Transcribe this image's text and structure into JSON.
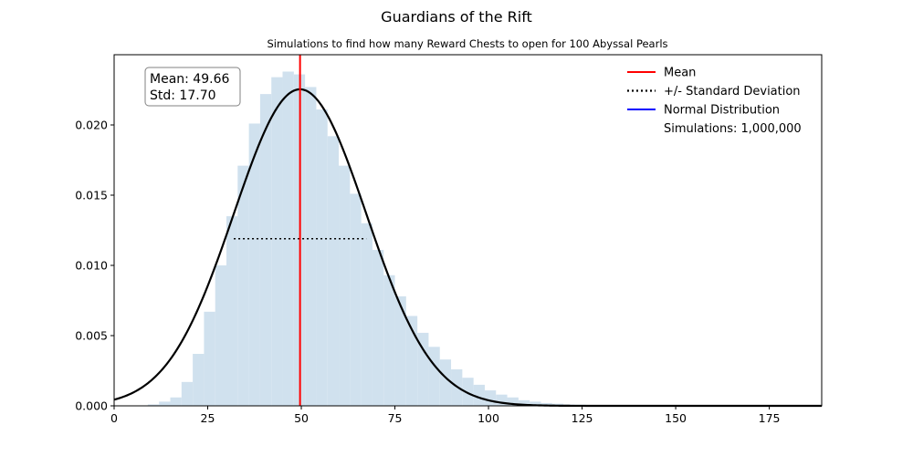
{
  "chart_data": {
    "type": "bar",
    "title": "Guardians of the Rift",
    "subtitle": "Simulations to find how many Reward Chests to open for 100 Abyssal Pearls",
    "xlim": [
      0,
      189
    ],
    "ylim": [
      0,
      0.025
    ],
    "x_ticks": [
      0,
      25,
      50,
      75,
      100,
      125,
      150,
      175
    ],
    "y_ticks": [
      0.0,
      0.005,
      0.01,
      0.015,
      0.02
    ],
    "y_tick_labels": [
      "0.000",
      "0.005",
      "0.010",
      "0.015",
      "0.020"
    ],
    "histogram": {
      "bin_width": 3,
      "bin_start": 9,
      "density": [
        0.0001,
        0.0003,
        0.0006,
        0.0017,
        0.0037,
        0.0067,
        0.01,
        0.0135,
        0.0171,
        0.0201,
        0.0222,
        0.0234,
        0.0238,
        0.0236,
        0.0227,
        0.0211,
        0.0192,
        0.0171,
        0.0151,
        0.013,
        0.0111,
        0.0093,
        0.0078,
        0.0064,
        0.0052,
        0.0042,
        0.0033,
        0.0026,
        0.002,
        0.0015,
        0.0011,
        0.0008,
        0.0006,
        0.0004,
        0.0003,
        0.0002,
        0.00015,
        0.0001,
        8e-05,
        5e-05,
        3e-05,
        2e-05
      ],
      "color": "#d0e1ee"
    },
    "mean": 49.66,
    "std": 17.7,
    "mean_line_color": "#ff0000",
    "std_line_y": 0.0119,
    "normal_curve_color": "#000000",
    "stats_box": {
      "mean_label": "Mean: 49.66",
      "std_label": "Std: 17.70"
    },
    "legend": {
      "position": "top-right",
      "entries": [
        {
          "label": "Mean",
          "style": "solid",
          "color": "#ff0000"
        },
        {
          "label": "+/- Standard Deviation",
          "style": "dotted",
          "color": "#000000"
        },
        {
          "label": "Normal Distribution",
          "style": "solid",
          "color": "#0000ff"
        },
        {
          "label": "Simulations: 1,000,000",
          "style": "none",
          "color": ""
        }
      ]
    }
  }
}
